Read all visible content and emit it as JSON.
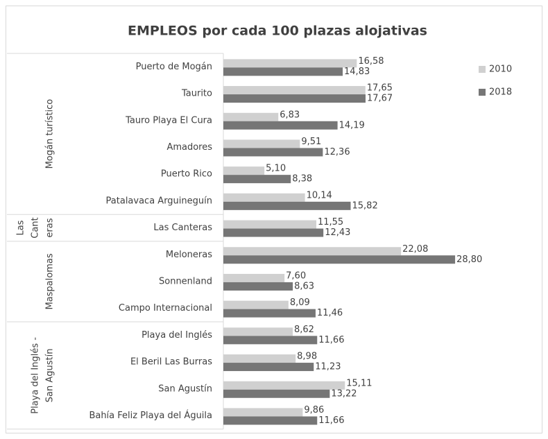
{
  "chart_data": {
    "type": "bar",
    "orientation": "horizontal",
    "title": "EMPLEOS por cada 100 plazas alojativas",
    "groups": [
      {
        "label": [
          "Mogán turístico"
        ],
        "categories": [
          "Puerto de Mogán",
          "Taurito",
          "Tauro Playa El Cura",
          "Amadores",
          "Puerto Rico",
          "Patalavaca Arguineguín"
        ]
      },
      {
        "label": [
          "Las",
          "Cant",
          "eras"
        ],
        "categories": [
          "Las Canteras"
        ]
      },
      {
        "label": [
          "Maspalomas"
        ],
        "categories": [
          "Meloneras",
          "Sonnenland",
          "Campo Internacional"
        ]
      },
      {
        "label": [
          "Playa del Inglés -",
          "San Agustín"
        ],
        "categories": [
          "Playa del Inglés",
          "El Beril Las Burras",
          "San Agustín",
          "Bahía Feliz Playa del Águila"
        ]
      }
    ],
    "series": [
      {
        "name": "2010",
        "color": "#d0d0d0",
        "values": [
          16.58,
          17.65,
          6.83,
          9.51,
          5.1,
          10.14,
          11.55,
          22.08,
          7.6,
          8.09,
          8.62,
          8.98,
          15.11,
          9.86
        ],
        "value_labels": [
          "16,58",
          "17,65",
          "6,83",
          "9,51",
          "5,10",
          "10,14",
          "11,55",
          "22,08",
          "7,60",
          "8,09",
          "8,62",
          "8,98",
          "15,11",
          "9,86"
        ]
      },
      {
        "name": "2018",
        "color": "#767676",
        "values": [
          14.83,
          17.67,
          14.19,
          12.36,
          8.38,
          15.82,
          12.43,
          28.8,
          8.63,
          11.46,
          11.66,
          11.23,
          13.22,
          11.66
        ],
        "value_labels": [
          "14,83",
          "17,67",
          "14,19",
          "12,36",
          "8,38",
          "15,82",
          "12,43",
          "28,80",
          "8,63",
          "11,46",
          "11,66",
          "11,23",
          "13,22",
          "11,66"
        ]
      }
    ],
    "xlim": [
      0,
      35
    ],
    "legend": "right"
  }
}
